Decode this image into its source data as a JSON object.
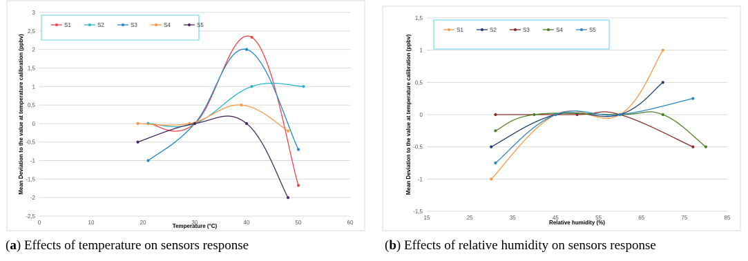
{
  "chart_data": [
    {
      "type": "line",
      "smooth": true,
      "xlabel": "Temperature (°C)",
      "ylabel": "Mean Deviation to the value at temperature calibration (ppbv)",
      "xlim": [
        0,
        60
      ],
      "ylim": [
        -2.5,
        3
      ],
      "xticks": [
        0,
        10,
        20,
        30,
        40,
        50,
        60
      ],
      "yticks": [
        -2.5,
        -2,
        -1.5,
        -1,
        -0.5,
        0,
        0.5,
        1,
        1.5,
        2,
        2.5,
        3
      ],
      "xtick_labels": [
        "0",
        "10",
        "20",
        "30",
        "40",
        "50",
        "60"
      ],
      "ytick_labels": [
        "-2,5",
        "-2",
        "-1,5",
        "-1",
        "-0,5",
        "0",
        "0,5",
        "1",
        "1,5",
        "2",
        "2,5",
        "3"
      ],
      "grid": "horizontal",
      "legend_position": "top-left",
      "series": [
        {
          "name": "S1",
          "color": "#e8474b",
          "x": [
            21,
            30,
            41,
            50
          ],
          "y": [
            0,
            0,
            2.33,
            -1.67
          ]
        },
        {
          "name": "S2",
          "color": "#2ab5c9",
          "x": [
            21,
            30,
            41,
            51
          ],
          "y": [
            0,
            0,
            1,
            1
          ]
        },
        {
          "name": "S3",
          "color": "#2287c4",
          "x": [
            21,
            30,
            40,
            50
          ],
          "y": [
            -1,
            0,
            2,
            -0.7
          ]
        },
        {
          "name": "S4",
          "color": "#f59a48",
          "x": [
            19,
            29,
            39,
            48
          ],
          "y": [
            0,
            0,
            0.5,
            -0.2
          ]
        },
        {
          "name": "S5",
          "color": "#4a2a5c",
          "x": [
            19,
            30,
            40,
            48
          ],
          "y": [
            -0.5,
            0,
            0,
            -2
          ]
        }
      ]
    },
    {
      "type": "line",
      "smooth": true,
      "xlabel": "Relative humidity (%)",
      "ylabel": "Mean Deviation to the value at temperature calibration (ppbv)",
      "xlim": [
        15,
        85
      ],
      "ylim": [
        -1.5,
        1.5
      ],
      "xticks": [
        15,
        25,
        35,
        45,
        55,
        65,
        75,
        85
      ],
      "yticks": [
        -1.5,
        -1,
        -0.5,
        0,
        0.5,
        1,
        1.5
      ],
      "xtick_labels": [
        "15",
        "25",
        "35",
        "45",
        "55",
        "65",
        "75",
        "85"
      ],
      "ytick_labels": [
        "-1,5",
        "-1",
        "-0,5",
        "0",
        "0,5",
        "1",
        "1,5"
      ],
      "grid": "horizontal",
      "legend_position": "top-left",
      "series": [
        {
          "name": "S1",
          "color": "#f59a48",
          "x": [
            30,
            45,
            60,
            70
          ],
          "y": [
            -1,
            0,
            0,
            1
          ]
        },
        {
          "name": "S2",
          "color": "#1f3f6e",
          "x": [
            30,
            45,
            60,
            70
          ],
          "y": [
            -0.5,
            0,
            0,
            0.5
          ]
        },
        {
          "name": "S3",
          "color": "#8b2a2a",
          "x": [
            31,
            50,
            60,
            77
          ],
          "y": [
            0,
            0,
            0,
            -0.5
          ]
        },
        {
          "name": "S4",
          "color": "#4e7f2a",
          "x": [
            31,
            40,
            60,
            70,
            80
          ],
          "y": [
            -0.25,
            0,
            0,
            0,
            -0.5
          ]
        },
        {
          "name": "S5",
          "color": "#2e86c1",
          "x": [
            31,
            45,
            60,
            77
          ],
          "y": [
            -0.75,
            0,
            0,
            0.25
          ]
        }
      ]
    }
  ],
  "captions": [
    {
      "label": "a",
      "text": "Effects of temperature on sensors response"
    },
    {
      "label": "b",
      "text": "Effects of relative humidity on sensors response"
    }
  ]
}
